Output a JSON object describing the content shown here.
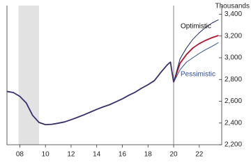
{
  "chart_data": {
    "type": "line",
    "y_axis_label": "Thousands",
    "y_axis_side": "right",
    "xlim": [
      2007,
      2023.75
    ],
    "xticks": [
      {
        "value": 2008,
        "label": "08"
      },
      {
        "value": 2010,
        "label": "10"
      },
      {
        "value": 2012,
        "label": "12"
      },
      {
        "value": 2014,
        "label": "14"
      },
      {
        "value": 2016,
        "label": "16"
      },
      {
        "value": 2018,
        "label": "18"
      },
      {
        "value": 2020,
        "label": "20"
      },
      {
        "value": 2022,
        "label": "22"
      }
    ],
    "ylim": [
      2200,
      3480
    ],
    "yticks": [
      {
        "value": 2200,
        "label": "2,200"
      },
      {
        "value": 2400,
        "label": "2,400"
      },
      {
        "value": 2600,
        "label": "2,600"
      },
      {
        "value": 2800,
        "label": "2,800"
      },
      {
        "value": 3000,
        "label": "3,000"
      },
      {
        "value": 3200,
        "label": "3,200"
      },
      {
        "value": 3400,
        "label": "3,400"
      }
    ],
    "grid": false,
    "shaded_regions": [
      {
        "start": 2007.9,
        "end": 2009.5,
        "color": "#e2e2e2"
      }
    ],
    "vlines": [
      {
        "value": 2020,
        "color": "#777777"
      }
    ],
    "series": [
      {
        "color": "#3b2d6b",
        "x": [
          2007,
          2007.5,
          2008,
          2008.5,
          2009,
          2009.5,
          2010,
          2010.5,
          2011,
          2011.5,
          2012,
          2012.5,
          2013,
          2013.5,
          2014,
          2014.5,
          2015,
          2015.5,
          2016,
          2016.5,
          2017,
          2017.5,
          2018,
          2018.5,
          2019,
          2019.5,
          2019.75,
          2020
        ],
        "values": [
          2690,
          2680,
          2645,
          2585,
          2470,
          2405,
          2385,
          2388,
          2398,
          2410,
          2430,
          2452,
          2475,
          2500,
          2525,
          2548,
          2568,
          2595,
          2622,
          2655,
          2683,
          2720,
          2752,
          2790,
          2865,
          2935,
          2960,
          2775
        ]
      },
      {
        "color": "#b0132e",
        "x": [
          2020,
          2020.5,
          2021,
          2021.5,
          2022,
          2022.5,
          2023,
          2023.5
        ],
        "values": [
          2775,
          2950,
          3030,
          3090,
          3130,
          3160,
          3185,
          3205
        ]
      },
      {
        "name": "Optimistic",
        "color": "#1f2a5c",
        "x": [
          2020,
          2020.5,
          2021,
          2021.5,
          2022,
          2022.5,
          2023,
          2023.5
        ],
        "values": [
          2775,
          2990,
          3090,
          3170,
          3230,
          3280,
          3320,
          3350
        ]
      },
      {
        "name": "Pessimistic",
        "color": "#2f4c8a",
        "x": [
          2020,
          2020.5,
          2021,
          2021.5,
          2022,
          2022.5,
          2023,
          2023.5
        ],
        "values": [
          2775,
          2890,
          2960,
          3000,
          3040,
          3075,
          3105,
          3140
        ]
      }
    ]
  }
}
